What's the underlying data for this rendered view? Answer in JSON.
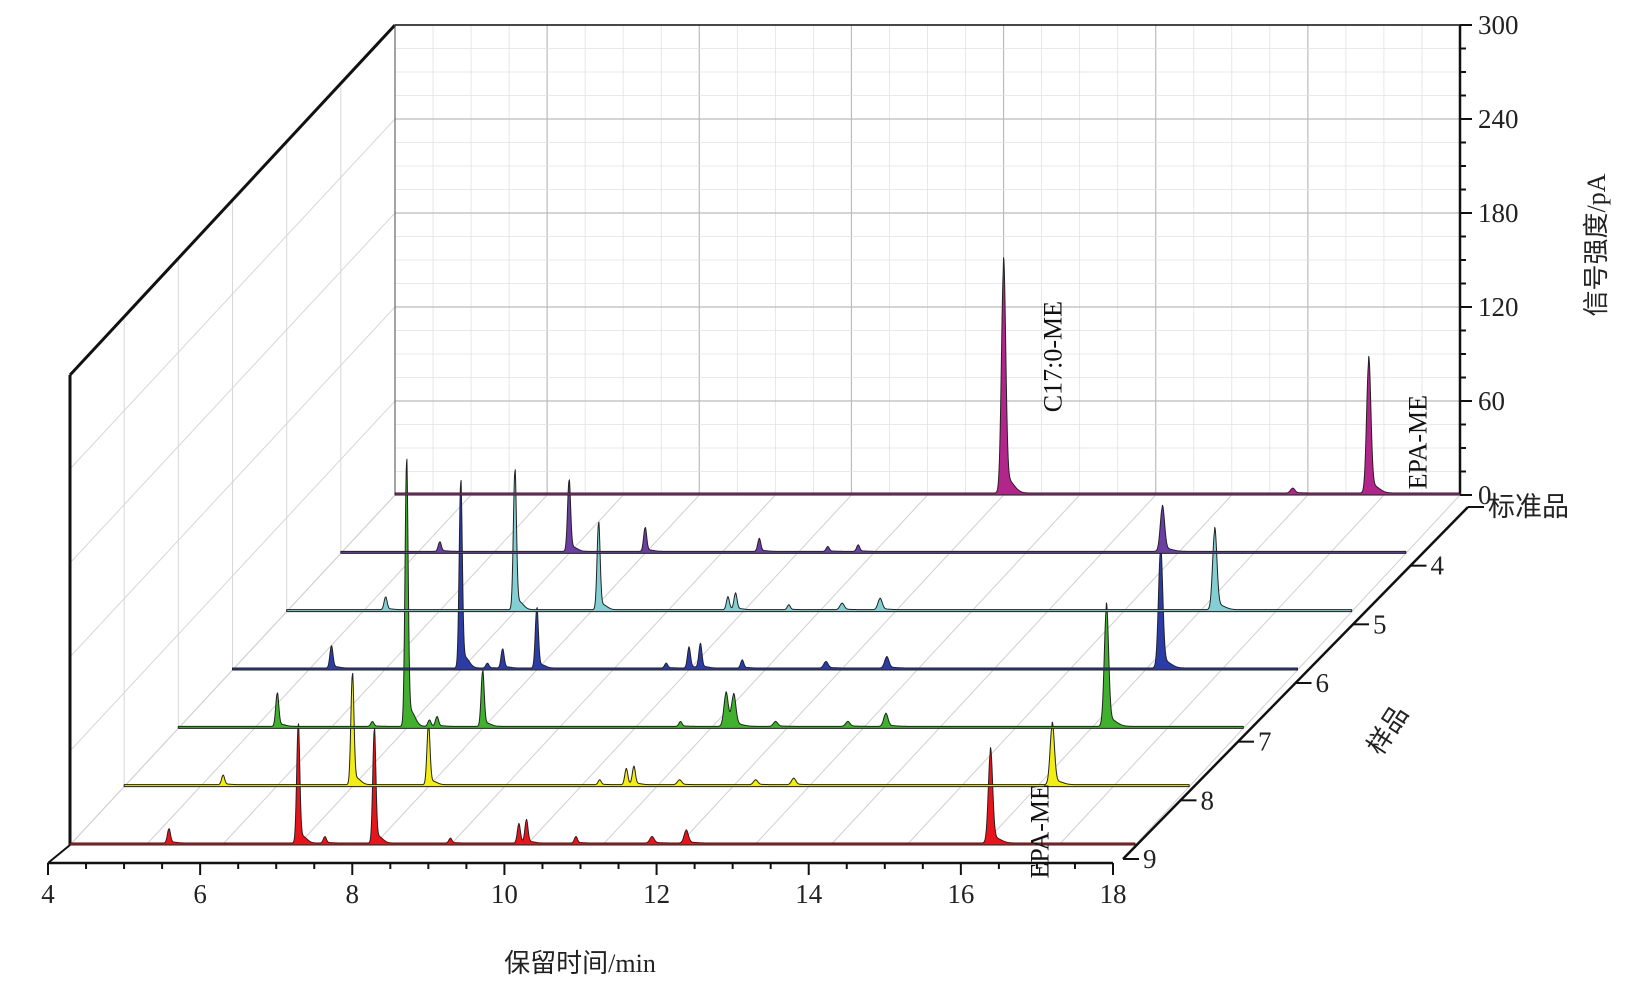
{
  "chart_data": {
    "type": "line",
    "subtype": "3d-waterfall",
    "xlabel": "保留时间/min",
    "ylabel": "信号强度/pA",
    "zlabel": "样品",
    "xlim": [
      4,
      18
    ],
    "ylim": [
      0,
      300
    ],
    "x_ticks": [
      4,
      6,
      8,
      10,
      12,
      14,
      16,
      18
    ],
    "y_ticks": [
      0,
      60,
      120,
      180,
      240,
      300
    ],
    "z_categories": [
      "9",
      "8",
      "7",
      "6",
      "5",
      "4",
      "标准品"
    ],
    "grid": true,
    "series": [
      {
        "name": "9",
        "color": "#e8141c",
        "peaks": [
          [
            5.3,
            9
          ],
          [
            7.0,
            75
          ],
          [
            7.35,
            4
          ],
          [
            8.0,
            72
          ],
          [
            9.0,
            3
          ],
          [
            9.9,
            12
          ],
          [
            10.0,
            14
          ],
          [
            10.65,
            4
          ],
          [
            11.65,
            4
          ],
          [
            12.1,
            8
          ],
          [
            16.1,
            58
          ]
        ]
      },
      {
        "name": "8",
        "color": "#f2ed14",
        "peaks": [
          [
            5.3,
            6
          ],
          [
            7.0,
            70
          ],
          [
            8.0,
            38
          ],
          [
            10.25,
            3
          ],
          [
            10.6,
            10
          ],
          [
            10.7,
            11
          ],
          [
            11.3,
            3
          ],
          [
            12.3,
            3
          ],
          [
            12.8,
            4
          ],
          [
            16.2,
            38
          ]
        ]
      },
      {
        "name": "7",
        "color": "#40b02e",
        "peaks": [
          [
            5.3,
            21
          ],
          [
            6.55,
            3
          ],
          [
            7.0,
            168
          ],
          [
            7.3,
            4
          ],
          [
            7.4,
            6
          ],
          [
            8.0,
            35
          ],
          [
            10.6,
            3
          ],
          [
            11.2,
            21
          ],
          [
            11.3,
            19
          ],
          [
            11.85,
            3
          ],
          [
            12.8,
            3
          ],
          [
            13.3,
            8
          ],
          [
            16.2,
            75
          ]
        ]
      },
      {
        "name": "6",
        "color": "#2c3ca6",
        "peaks": [
          [
            5.3,
            14
          ],
          [
            7.0,
            118
          ],
          [
            7.35,
            3
          ],
          [
            7.55,
            12
          ],
          [
            8.0,
            38
          ],
          [
            9.7,
            3
          ],
          [
            10.0,
            13
          ],
          [
            10.15,
            15
          ],
          [
            10.7,
            5
          ],
          [
            11.8,
            4
          ],
          [
            12.6,
            7
          ],
          [
            16.2,
            75
          ]
        ]
      },
      {
        "name": "5",
        "color": "#84cfd3",
        "peaks": [
          [
            5.3,
            8
          ],
          [
            7.0,
            88
          ],
          [
            8.1,
            55
          ],
          [
            9.8,
            8
          ],
          [
            9.9,
            10
          ],
          [
            10.6,
            3
          ],
          [
            11.3,
            4
          ],
          [
            11.8,
            7
          ],
          [
            16.2,
            50
          ]
        ]
      },
      {
        "name": "4",
        "color": "#6a3ea2",
        "peaks": [
          [
            5.3,
            6
          ],
          [
            7.0,
            45
          ],
          [
            8.0,
            15
          ],
          [
            9.5,
            8
          ],
          [
            10.4,
            3
          ],
          [
            10.8,
            4
          ],
          [
            14.8,
            28
          ]
        ]
      },
      {
        "name": "标准品",
        "color": "#b2268c",
        "peaks": [
          [
            12.0,
            143
          ],
          [
            15.8,
            3
          ],
          [
            16.8,
            83
          ]
        ]
      }
    ],
    "annotations": [
      {
        "text": "C17:0-ME",
        "series": "标准品",
        "x": 12.0
      },
      {
        "text": "EPA-ME",
        "series": "标准品",
        "x": 16.8
      },
      {
        "text": "EPA-ME",
        "series": "9",
        "x": 16.1
      }
    ]
  }
}
